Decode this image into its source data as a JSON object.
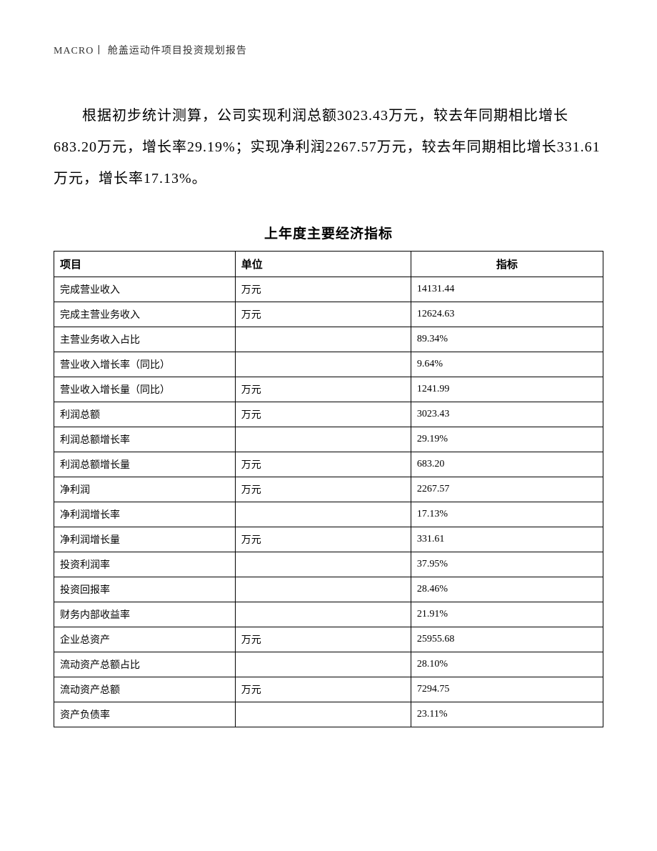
{
  "header": {
    "text": "MACRO丨 舱盖运动件项目投资规划报告"
  },
  "paragraph": {
    "text": "根据初步统计测算，公司实现利润总额3023.43万元，较去年同期相比增长683.20万元，增长率29.19%；实现净利润2267.57万元，较去年同期相比增长331.61万元，增长率17.13%。"
  },
  "table": {
    "title": "上年度主要经济指标",
    "columns": [
      "项目",
      "单位",
      "指标"
    ],
    "rows": [
      [
        "完成营业收入",
        "万元",
        "14131.44"
      ],
      [
        "完成主营业务收入",
        "万元",
        "12624.63"
      ],
      [
        "主营业务收入占比",
        "",
        "89.34%"
      ],
      [
        "营业收入增长率（同比）",
        "",
        "9.64%"
      ],
      [
        "营业收入增长量（同比）",
        "万元",
        "1241.99"
      ],
      [
        "利润总额",
        "万元",
        "3023.43"
      ],
      [
        "利润总额增长率",
        "",
        "29.19%"
      ],
      [
        "利润总额增长量",
        "万元",
        "683.20"
      ],
      [
        "净利润",
        "万元",
        "2267.57"
      ],
      [
        "净利润增长率",
        "",
        "17.13%"
      ],
      [
        "净利润增长量",
        "万元",
        "331.61"
      ],
      [
        "投资利润率",
        "",
        "37.95%"
      ],
      [
        "投资回报率",
        "",
        "28.46%"
      ],
      [
        "财务内部收益率",
        "",
        "21.91%"
      ],
      [
        "企业总资产",
        "万元",
        "25955.68"
      ],
      [
        "流动资产总额占比",
        "",
        "28.10%"
      ],
      [
        "流动资产总额",
        "万元",
        "7294.75"
      ],
      [
        "资产负债率",
        "",
        "23.11%"
      ]
    ]
  }
}
